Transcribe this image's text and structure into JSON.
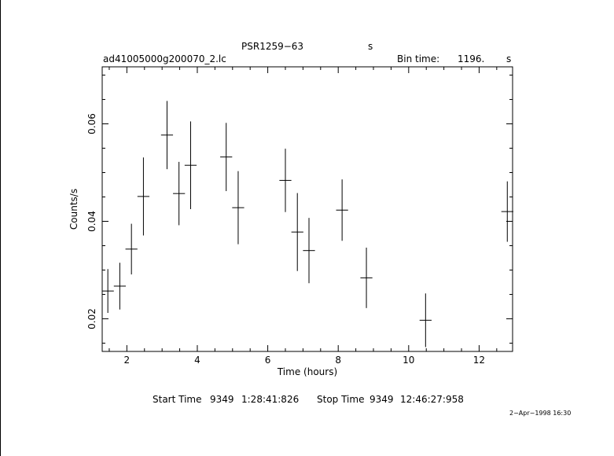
{
  "header": {
    "object": "PSR1259−63",
    "unit_label": "s",
    "filename": "ad41005000g200070_2.lc",
    "bin_time_label": "Bin time:",
    "bin_time_value": "1196.",
    "bin_time_unit": "s"
  },
  "footer": {
    "start_label": "Start Time",
    "start_day": "9349",
    "start_time": "1:28:41:826",
    "stop_label": "Stop Time",
    "stop_day": "9349",
    "stop_time": "12:46:27:958",
    "date_stamp": "2−Apr−1998 16:30"
  },
  "chart_data": {
    "type": "scatter",
    "xlabel": "Time (hours)",
    "ylabel": "Counts/s",
    "xlim": [
      1.3,
      12.95
    ],
    "ylim": [
      0.0133,
      0.0717
    ],
    "x_ticks": [
      2,
      4,
      6,
      8,
      10,
      12
    ],
    "x_tick_labels": [
      "2",
      "4",
      "6",
      "8",
      "10",
      "12"
    ],
    "y_ticks": [
      0.02,
      0.04,
      0.06
    ],
    "y_tick_labels": [
      "0.02",
      "0.04",
      "0.06"
    ],
    "grid": false,
    "points": [
      {
        "x": 1.46,
        "xerr": 0.17,
        "y": 0.0257,
        "yerr": 0.0045
      },
      {
        "x": 1.8,
        "xerr": 0.17,
        "y": 0.0267,
        "yerr": 0.0048
      },
      {
        "x": 2.13,
        "xerr": 0.17,
        "y": 0.0343,
        "yerr": 0.0052
      },
      {
        "x": 2.47,
        "xerr": 0.17,
        "y": 0.0451,
        "yerr": 0.008
      },
      {
        "x": 3.14,
        "xerr": 0.17,
        "y": 0.0577,
        "yerr": 0.007
      },
      {
        "x": 3.48,
        "xerr": 0.17,
        "y": 0.0457,
        "yerr": 0.0065
      },
      {
        "x": 3.81,
        "xerr": 0.17,
        "y": 0.0515,
        "yerr": 0.009
      },
      {
        "x": 4.82,
        "xerr": 0.17,
        "y": 0.0532,
        "yerr": 0.007
      },
      {
        "x": 5.16,
        "xerr": 0.17,
        "y": 0.0428,
        "yerr": 0.0075
      },
      {
        "x": 6.5,
        "xerr": 0.17,
        "y": 0.0484,
        "yerr": 0.0065
      },
      {
        "x": 6.84,
        "xerr": 0.17,
        "y": 0.0378,
        "yerr": 0.008
      },
      {
        "x": 7.17,
        "xerr": 0.17,
        "y": 0.034,
        "yerr": 0.0067
      },
      {
        "x": 8.11,
        "xerr": 0.17,
        "y": 0.0423,
        "yerr": 0.0063
      },
      {
        "x": 8.8,
        "xerr": 0.17,
        "y": 0.0284,
        "yerr": 0.0062
      },
      {
        "x": 10.48,
        "xerr": 0.17,
        "y": 0.0197,
        "yerr": 0.0055
      },
      {
        "x": 12.8,
        "xerr": 0.17,
        "y": 0.042,
        "yerr": 0.0062
      }
    ]
  }
}
